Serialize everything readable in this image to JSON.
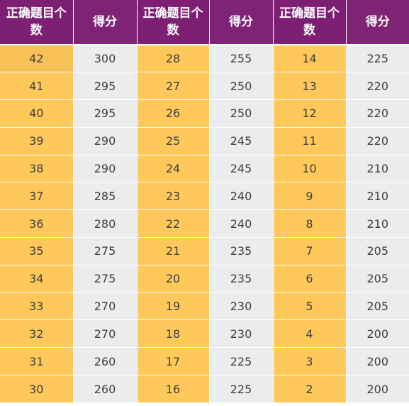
{
  "table": {
    "headers": [
      "正确题目个数",
      "得分",
      "正确题目个数",
      "得分",
      "正确题目个数",
      "得分"
    ],
    "rows": [
      [
        42,
        300,
        28,
        255,
        14,
        225
      ],
      [
        41,
        295,
        27,
        250,
        13,
        220
      ],
      [
        40,
        295,
        26,
        250,
        12,
        220
      ],
      [
        39,
        290,
        25,
        245,
        11,
        220
      ],
      [
        38,
        290,
        24,
        245,
        10,
        210
      ],
      [
        37,
        285,
        23,
        240,
        9,
        210
      ],
      [
        36,
        280,
        22,
        240,
        8,
        210
      ],
      [
        35,
        275,
        21,
        235,
        7,
        205
      ],
      [
        34,
        275,
        20,
        235,
        6,
        205
      ],
      [
        33,
        270,
        19,
        230,
        5,
        205
      ],
      [
        32,
        270,
        18,
        230,
        4,
        200
      ],
      [
        31,
        260,
        17,
        225,
        3,
        200
      ],
      [
        30,
        260,
        16,
        225,
        2,
        200
      ]
    ]
  },
  "colors": {
    "header_bg": "#7d1f72",
    "count_cell_bg": "#fec95a",
    "score_cell_bg": "#ebecee",
    "text": "#3e3e3e"
  }
}
